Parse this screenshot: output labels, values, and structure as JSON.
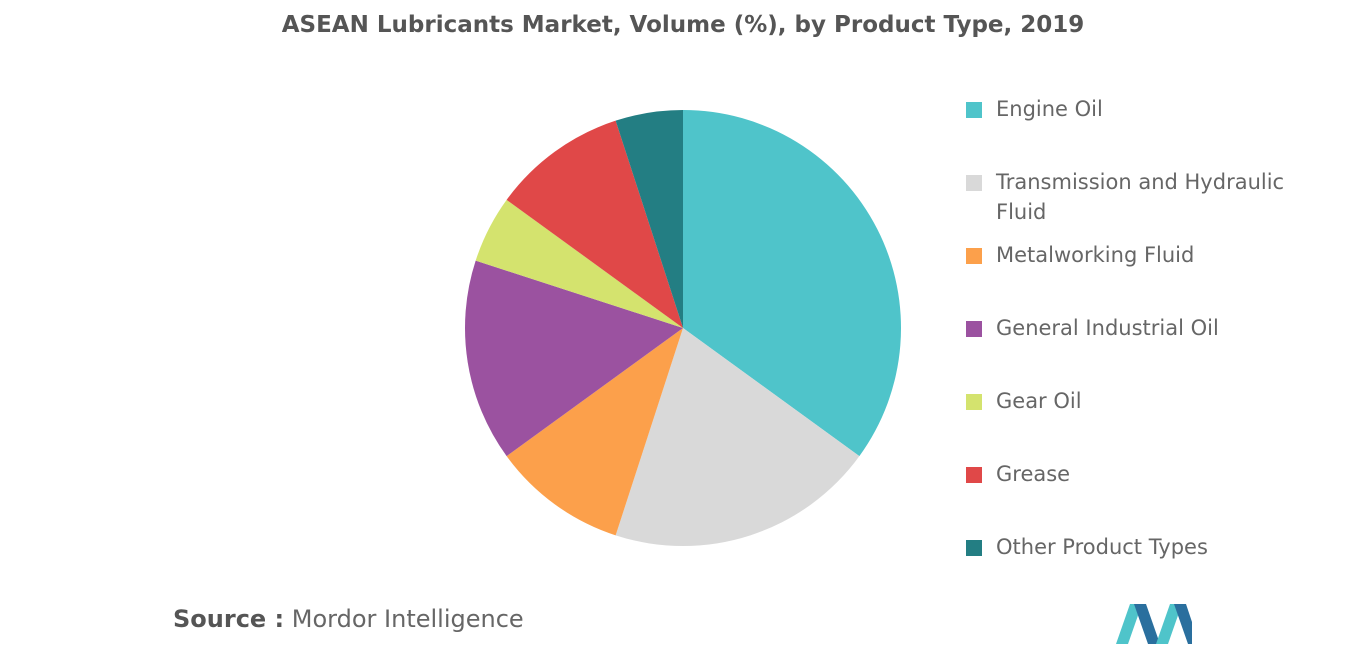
{
  "title": "ASEAN Lubricants Market, Volume (%), by Product Type, 2019",
  "chart_data": {
    "type": "pie",
    "title": "ASEAN Lubricants Market, Volume (%), by Product Type, 2019",
    "legend_position": "right",
    "start_angle_deg": 0,
    "direction": "clockwise",
    "slices": [
      {
        "label": "Engine Oil",
        "value": 35,
        "color": "#4fc4ca"
      },
      {
        "label": "Transmission and Hydraulic Fluid",
        "value": 20,
        "color": "#d9d9d9"
      },
      {
        "label": "Metalworking Fluid",
        "value": 10,
        "color": "#fca04b"
      },
      {
        "label": "General Industrial Oil",
        "value": 15,
        "color": "#9b52a0"
      },
      {
        "label": "Gear Oil",
        "value": 5,
        "color": "#d4e36e"
      },
      {
        "label": "Grease",
        "value": 10,
        "color": "#e04848"
      },
      {
        "label": "Other Product Types",
        "value": 5,
        "color": "#237e83"
      }
    ]
  },
  "source": {
    "prefix": "Source :",
    "text": " Mordor Intelligence"
  },
  "logo": {
    "colors": [
      "#4fc4ca",
      "#2a6f9e"
    ]
  }
}
